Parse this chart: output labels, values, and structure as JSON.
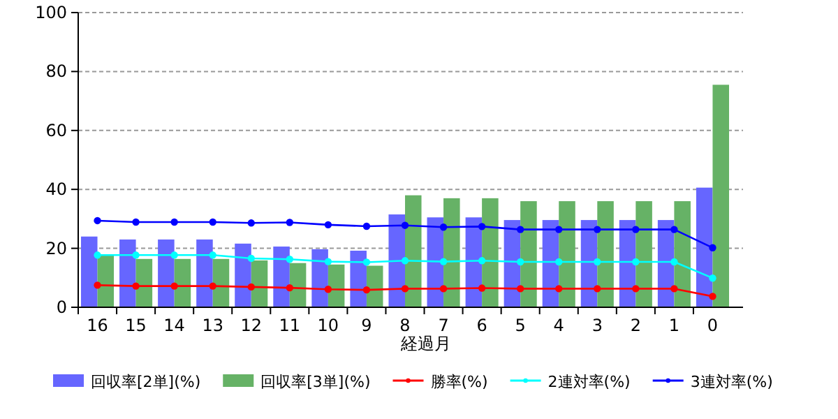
{
  "chart_data": {
    "type": "bar",
    "xlabel": "経過月",
    "categories": [
      "16",
      "15",
      "14",
      "13",
      "12",
      "11",
      "10",
      "9",
      "8",
      "7",
      "6",
      "5",
      "4",
      "3",
      "2",
      "1",
      "0"
    ],
    "ylim": [
      0,
      100
    ],
    "yticks": [
      0,
      20,
      40,
      60,
      80,
      100
    ],
    "grid": "y",
    "legend": "bottom",
    "marker": "circle",
    "series": [
      {
        "name": "回収率[2単](%)",
        "color": "#6666ff",
        "values": [
          24,
          23,
          23,
          23,
          21.6,
          20.6,
          19.7,
          19.2,
          31.5,
          30.5,
          30.5,
          29.6,
          29.6,
          29.6,
          29.6,
          29.6,
          40.6
        ]
      },
      {
        "name": "回収率[3単](%)",
        "color": "#66b266",
        "values": [
          17.7,
          16.4,
          16.4,
          16.4,
          15.9,
          15,
          14.5,
          14.1,
          38,
          37,
          37,
          36,
          36,
          36,
          36,
          36,
          75.5
        ]
      },
      {
        "name": "勝率(%)",
        "type": "line",
        "color": "#ff0000",
        "values": [
          7.5,
          7.2,
          7.2,
          7.2,
          6.9,
          6.6,
          6.1,
          5.9,
          6.3,
          6.3,
          6.5,
          6.3,
          6.3,
          6.3,
          6.3,
          6.3,
          3.7
        ]
      },
      {
        "name": "2連対率(%)",
        "type": "line",
        "color": "#00ffff",
        "values": [
          17.7,
          17.7,
          17.7,
          17.7,
          16.6,
          16.3,
          15.5,
          15.3,
          15.8,
          15.5,
          15.8,
          15.4,
          15.4,
          15.4,
          15.4,
          15.4,
          9.9
        ]
      },
      {
        "name": "3連対率(%)",
        "type": "line",
        "color": "#0000ff",
        "values": [
          29.4,
          28.9,
          28.9,
          28.9,
          28.6,
          28.8,
          28,
          27.5,
          27.8,
          27.2,
          27.4,
          26.4,
          26.4,
          26.4,
          26.4,
          26.4,
          20.2
        ]
      }
    ]
  }
}
